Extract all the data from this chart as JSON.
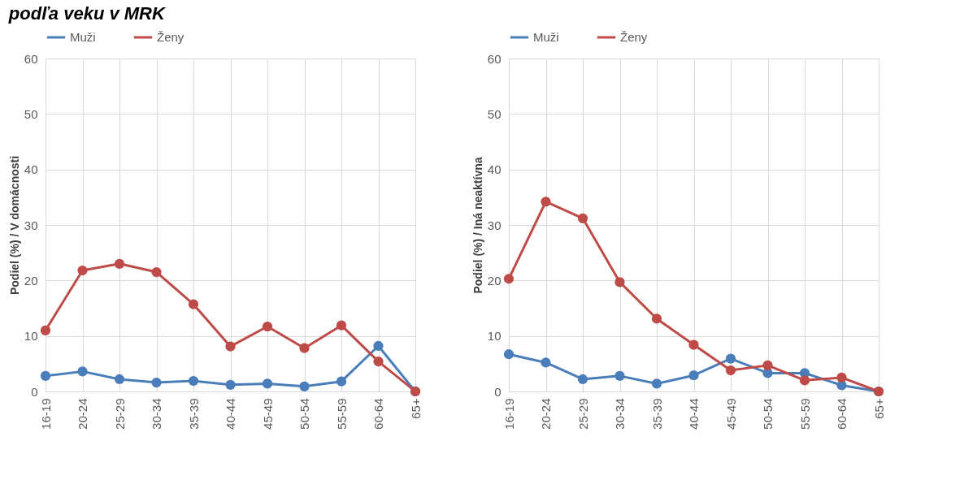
{
  "chart_data": [
    {
      "type": "line",
      "title": "podľa veku v MRK",
      "ylabel": "Podiel (%) / V domácnosti",
      "categories": [
        "16-19",
        "20-24",
        "25-29",
        "30-34",
        "35-39",
        "40-44",
        "45-49",
        "50-54",
        "55-59",
        "60-64",
        "65+"
      ],
      "series": [
        {
          "name": "Muži",
          "color": "#4a7ebb",
          "values": [
            2.8,
            3.6,
            2.2,
            1.6,
            1.9,
            1.2,
            1.4,
            0.9,
            1.8,
            8.2,
            0
          ]
        },
        {
          "name": "Ženy",
          "color": "#be4b48",
          "values": [
            11.0,
            21.8,
            23.0,
            21.5,
            15.7,
            8.1,
            11.7,
            7.8,
            11.9,
            5.4,
            0
          ]
        }
      ],
      "ylim": [
        0,
        60
      ],
      "yticks": [
        0,
        10,
        20,
        30,
        40,
        50,
        60
      ],
      "grid": true,
      "legend": "top",
      "marker": "circle",
      "line_style": "solid"
    },
    {
      "type": "line",
      "ylabel": "Podiel (%) / Iná neaktívna",
      "categories": [
        "16-19",
        "20-24",
        "25-29",
        "30-34",
        "35-39",
        "40-44",
        "45-49",
        "50-54",
        "55-59",
        "60-64",
        "65+"
      ],
      "series": [
        {
          "name": "Muži",
          "color": "#4a7ebb",
          "values": [
            6.7,
            5.2,
            2.2,
            2.8,
            1.4,
            2.9,
            5.9,
            3.3,
            3.3,
            1.1,
            0
          ]
        },
        {
          "name": "Ženy",
          "color": "#be4b48",
          "values": [
            20.3,
            34.2,
            31.2,
            19.7,
            13.1,
            8.4,
            3.8,
            4.7,
            2.0,
            2.5,
            0
          ]
        }
      ],
      "ylim": [
        0,
        60
      ],
      "yticks": [
        0,
        10,
        20,
        30,
        40,
        50,
        60
      ],
      "grid": true,
      "legend": "top",
      "marker": "circle",
      "line_style": "solid"
    }
  ]
}
